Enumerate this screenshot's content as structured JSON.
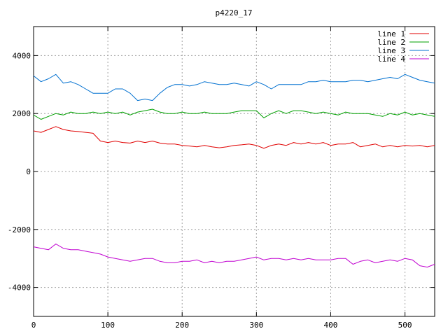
{
  "chart_data": {
    "type": "line",
    "title": "p4220_17",
    "xlabel": "",
    "ylabel": "",
    "xlim": [
      0,
      540
    ],
    "ylim": [
      -5000,
      5000
    ],
    "grid": true,
    "legend_placement": "top-right",
    "x_ticks": [
      0,
      100,
      200,
      300,
      400,
      500
    ],
    "y_ticks": [
      -4000,
      -2000,
      0,
      2000,
      4000
    ],
    "x_tick_labels": [
      "0",
      "100",
      "200",
      "300",
      "400",
      "500"
    ],
    "y_tick_labels": [
      "-4000",
      "-2000",
      "0",
      "2000",
      "4000"
    ],
    "x": [
      0,
      10,
      20,
      30,
      40,
      50,
      60,
      70,
      80,
      90,
      100,
      110,
      120,
      130,
      140,
      150,
      160,
      170,
      180,
      190,
      200,
      210,
      220,
      230,
      240,
      250,
      260,
      270,
      280,
      290,
      300,
      310,
      320,
      330,
      340,
      350,
      360,
      370,
      380,
      390,
      400,
      410,
      420,
      430,
      440,
      450,
      460,
      470,
      480,
      490,
      500,
      510,
      520,
      530,
      540
    ],
    "series": [
      {
        "name": "line 1",
        "color": "#e00000",
        "values": [
          1400,
          1350,
          1450,
          1550,
          1450,
          1400,
          1380,
          1350,
          1320,
          1050,
          1000,
          1050,
          1000,
          980,
          1050,
          1000,
          1050,
          980,
          950,
          950,
          900,
          880,
          850,
          900,
          850,
          820,
          850,
          900,
          920,
          950,
          900,
          800,
          900,
          950,
          900,
          1000,
          950,
          1000,
          950,
          1000,
          900,
          950,
          950,
          1000,
          850,
          900,
          950,
          850,
          900,
          850,
          900,
          880,
          900,
          850,
          900
        ]
      },
      {
        "name": "line 2",
        "color": "#00a000",
        "values": [
          1950,
          1800,
          1900,
          2000,
          1950,
          2050,
          2000,
          2000,
          2050,
          2000,
          2050,
          2000,
          2050,
          1950,
          2050,
          2100,
          2150,
          2050,
          2000,
          2000,
          2050,
          2000,
          2000,
          2050,
          2000,
          2000,
          2000,
          2050,
          2100,
          2100,
          2100,
          1850,
          2000,
          2100,
          2000,
          2100,
          2100,
          2050,
          2000,
          2050,
          2000,
          1950,
          2050,
          2000,
          2000,
          2000,
          1950,
          1900,
          2000,
          1950,
          2050,
          1950,
          2000,
          1950,
          1900
        ]
      },
      {
        "name": "line 3",
        "color": "#0070d0",
        "values": [
          3300,
          3100,
          3200,
          3350,
          3050,
          3100,
          3000,
          2850,
          2700,
          2700,
          2700,
          2850,
          2850,
          2700,
          2450,
          2500,
          2450,
          2700,
          2900,
          3000,
          3000,
          2950,
          3000,
          3100,
          3050,
          3000,
          3000,
          3050,
          3000,
          2950,
          3100,
          3000,
          2850,
          3000,
          3000,
          3000,
          3000,
          3100,
          3100,
          3150,
          3100,
          3100,
          3100,
          3150,
          3150,
          3100,
          3150,
          3200,
          3250,
          3200,
          3350,
          3250,
          3150,
          3100,
          3050
        ]
      },
      {
        "name": "line 4",
        "color": "#c000d0",
        "values": [
          -2600,
          -2650,
          -2700,
          -2500,
          -2650,
          -2700,
          -2700,
          -2750,
          -2800,
          -2850,
          -2950,
          -3000,
          -3050,
          -3100,
          -3050,
          -3000,
          -3000,
          -3100,
          -3150,
          -3150,
          -3100,
          -3100,
          -3050,
          -3150,
          -3100,
          -3150,
          -3100,
          -3100,
          -3050,
          -3000,
          -2950,
          -3050,
          -3000,
          -3000,
          -3050,
          -3000,
          -3050,
          -3000,
          -3050,
          -3050,
          -3050,
          -3000,
          -3000,
          -3200,
          -3100,
          -3050,
          -3150,
          -3100,
          -3050,
          -3100,
          -3000,
          -3050,
          -3250,
          -3300,
          -3200
        ]
      }
    ]
  }
}
